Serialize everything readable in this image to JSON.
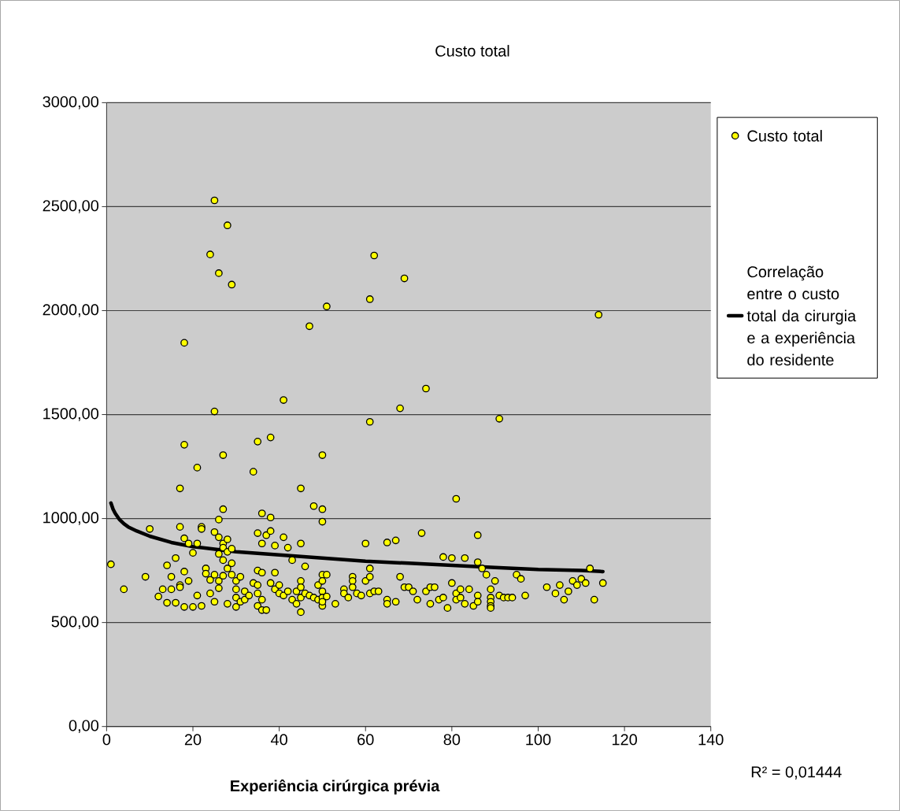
{
  "chart_data": {
    "type": "scatter",
    "title": "Custo total",
    "xlabel": "**Experiência cirúrgica prévia**",
    "xlim": [
      0,
      140
    ],
    "ylim": [
      0,
      3000
    ],
    "xticks": [
      0,
      20,
      40,
      60,
      80,
      100,
      120,
      140
    ],
    "yticks": [
      {
        "value": 0,
        "label": "0,00"
      },
      {
        "value": 500,
        "label": "500,00"
      },
      {
        "value": 1000,
        "label": "1000,00"
      },
      {
        "value": 1500,
        "label": "1500,00"
      },
      {
        "value": 2000,
        "label": "2000,00"
      },
      {
        "value": 2500,
        "label": "2500,00"
      },
      {
        "value": 3000,
        "label": "3000,00"
      }
    ],
    "grid": "y",
    "legend": "right",
    "marker": "circle",
    "annotations": [
      "R² = 0,01444"
    ],
    "series": [
      {
        "name": "Custo total",
        "color": "#ffff00",
        "x": [
          25,
          28,
          24,
          26,
          29,
          62,
          69,
          61,
          51,
          47,
          114,
          18,
          74,
          41,
          68,
          25,
          91,
          61,
          38,
          35,
          18,
          27,
          50,
          21,
          34,
          17,
          45,
          81,
          48,
          27,
          50,
          36,
          38,
          50,
          26,
          1,
          4,
          9,
          10,
          12,
          13,
          14,
          14,
          15,
          15,
          16,
          16,
          17,
          17,
          17,
          18,
          18,
          18,
          19,
          19,
          20,
          20,
          21,
          21,
          22,
          22,
          22,
          23,
          23,
          24,
          24,
          25,
          25,
          25,
          26,
          26,
          26,
          26,
          27,
          27,
          27,
          27,
          28,
          28,
          28,
          28,
          29,
          29,
          29,
          30,
          30,
          30,
          30,
          31,
          31,
          32,
          32,
          33,
          34,
          35,
          35,
          35,
          35,
          35,
          36,
          36,
          36,
          36,
          37,
          37,
          38,
          38,
          39,
          39,
          39,
          40,
          40,
          41,
          41,
          42,
          42,
          43,
          43,
          44,
          44,
          45,
          45,
          45,
          45,
          45,
          46,
          46,
          47,
          48,
          49,
          49,
          50,
          50,
          50,
          50,
          50,
          50,
          51,
          51,
          53,
          55,
          55,
          56,
          57,
          57,
          57,
          58,
          59,
          60,
          60,
          61,
          61,
          61,
          62,
          63,
          65,
          65,
          65,
          67,
          67,
          68,
          69,
          70,
          71,
          72,
          73,
          74,
          75,
          75,
          76,
          77,
          78,
          78,
          79,
          80,
          80,
          81,
          81,
          82,
          82,
          83,
          83,
          84,
          85,
          86,
          86,
          86,
          86,
          87,
          88,
          89,
          89,
          89,
          89,
          89,
          90,
          91,
          92,
          93,
          94,
          95,
          96,
          97,
          102,
          104,
          105,
          106,
          107,
          108,
          109,
          110,
          111,
          112,
          113,
          115
        ],
        "values": [
          2530,
          2410,
          2270,
          2180,
          2125,
          2265,
          2155,
          2055,
          2020,
          1925,
          1980,
          1845,
          1625,
          1570,
          1530,
          1515,
          1480,
          1465,
          1390,
          1370,
          1355,
          1305,
          1305,
          1245,
          1225,
          1145,
          1145,
          1095,
          1060,
          1045,
          1045,
          1025,
          1005,
          985,
          995,
          780,
          660,
          720,
          950,
          625,
          660,
          775,
          595,
          720,
          660,
          810,
          595,
          960,
          680,
          670,
          905,
          745,
          575,
          880,
          700,
          835,
          575,
          880,
          630,
          960,
          950,
          580,
          760,
          735,
          640,
          705,
          935,
          730,
          600,
          910,
          830,
          700,
          665,
          880,
          860,
          800,
          725,
          900,
          840,
          760,
          590,
          855,
          785,
          730,
          700,
          660,
          620,
          575,
          720,
          600,
          650,
          610,
          630,
          690,
          930,
          750,
          680,
          640,
          580,
          880,
          740,
          610,
          560,
          920,
          560,
          940,
          690,
          870,
          660,
          740,
          680,
          640,
          910,
          630,
          860,
          650,
          800,
          610,
          650,
          590,
          880,
          700,
          670,
          620,
          550,
          770,
          640,
          630,
          620,
          680,
          610,
          730,
          700,
          650,
          620,
          580,
          600,
          730,
          625,
          590,
          660,
          640,
          620,
          720,
          700,
          670,
          640,
          630,
          880,
          700,
          720,
          760,
          640,
          650,
          650,
          885,
          610,
          590,
          895,
          600,
          720,
          670,
          670,
          650,
          610,
          930,
          650,
          670,
          590,
          670,
          610,
          815,
          620,
          570,
          810,
          690,
          640,
          610,
          660,
          620,
          810,
          590,
          660,
          580,
          920,
          790,
          630,
          600,
          760,
          730,
          660,
          620,
          600,
          580,
          570,
          700,
          630,
          620,
          620,
          620,
          730,
          710,
          630,
          670,
          640,
          680,
          610,
          650,
          700,
          680,
          710,
          690,
          760,
          610,
          690
        ]
      },
      {
        "name": "Correlação entre o custo total da cirurgia e a experiência do residente",
        "type": "line",
        "color": "#000000",
        "marker": "none",
        "line_style": "solid",
        "x": [
          1,
          1.5,
          2,
          3,
          4,
          5,
          7,
          10,
          15,
          20,
          30,
          40,
          50,
          60,
          70,
          80,
          90,
          100,
          110,
          115
        ],
        "values": [
          1075,
          1045,
          1025,
          995,
          975,
          960,
          940,
          915,
          885,
          865,
          840,
          825,
          810,
          795,
          785,
          775,
          765,
          755,
          750,
          745
        ]
      }
    ]
  }
}
